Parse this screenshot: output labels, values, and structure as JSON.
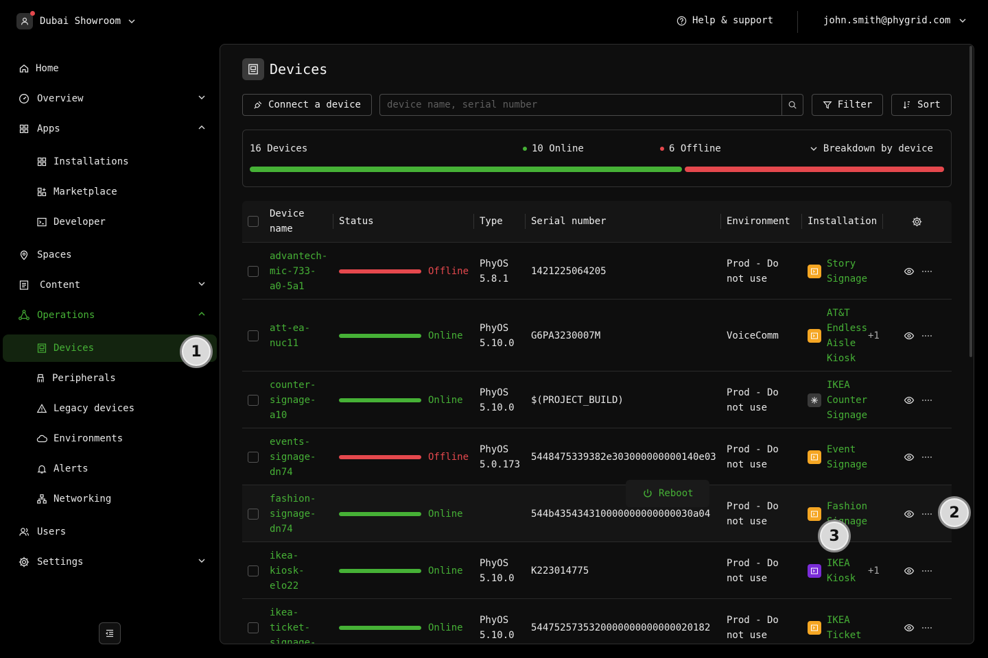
{
  "topbar": {
    "org_name": "Dubai Showroom",
    "help_label": "Help & support",
    "user_email": "john.smith@phygrid.com"
  },
  "sidebar": {
    "home": "Home",
    "overview": "Overview",
    "apps": "Apps",
    "installations": "Installations",
    "marketplace": "Marketplace",
    "developer": "Developer",
    "spaces": "Spaces",
    "content": "Content",
    "operations": "Operations",
    "devices": "Devices",
    "peripherals": "Peripherals",
    "legacy_devices": "Legacy devices",
    "environments": "Environments",
    "alerts": "Alerts",
    "networking": "Networking",
    "users": "Users",
    "settings": "Settings"
  },
  "callouts": [
    "1",
    "2",
    "3"
  ],
  "page": {
    "title": "Devices",
    "connect_label": "Connect a device",
    "search_placeholder": "device name, serial number",
    "filter_label": "Filter",
    "sort_label": "Sort"
  },
  "summary": {
    "total": "16 Devices",
    "online": "10 Online",
    "offline": "6 Offline",
    "breakdown": "Breakdown by device",
    "online_count": 10,
    "offline_count": 6
  },
  "colors": {
    "online": "#46b136",
    "offline": "#e5484d",
    "accent": "#46b136"
  },
  "table": {
    "headers": {
      "device_name": "Device\nname",
      "status": "Status",
      "type": "Type",
      "serial": "Serial number",
      "environment": "Environment",
      "installation": "Installation"
    },
    "rows": [
      {
        "name": "advantech-\nmic-733-\na0-5a1",
        "status": "Offline",
        "type": "PhyOS\n5.8.1",
        "serial": "1421225064205",
        "env": "Prod - Do\nnot use",
        "inst": "Story\nSignage",
        "inst_icon": "orange",
        "extra": ""
      },
      {
        "name": "att-ea-\nnuc11",
        "status": "Online",
        "type": "PhyOS\n5.10.0",
        "serial": "G6PA3230007M",
        "env": "VoiceComm",
        "inst": "AT&T\nEndless\nAisle\nKiosk",
        "inst_icon": "orange",
        "extra": "+1"
      },
      {
        "name": "counter-\nsignage-\na10",
        "status": "Online",
        "type": "PhyOS\n5.10.0",
        "serial": "$(PROJECT_BUILD)",
        "env": "Prod - Do\nnot use",
        "inst": "IKEA\nCounter\nSignage",
        "inst_icon": "gray",
        "extra": ""
      },
      {
        "name": "events-\nsignage-\ndn74",
        "status": "Offline",
        "type": "PhyOS\n5.0.173",
        "serial": "5448475339382e303000000000140e03",
        "env": "Prod - Do\nnot use",
        "inst": "Event\nSignage",
        "inst_icon": "orange",
        "extra": ""
      },
      {
        "name": "fashion-\nsignage-\ndn74",
        "status": "Online",
        "type": "",
        "serial": "544b435434310000000000000030a04",
        "env": "Prod - Do\nnot use",
        "inst": "Fashion\nSignage",
        "inst_icon": "orange",
        "extra": ""
      },
      {
        "name": "ikea-\nkiosk-\nelo22",
        "status": "Online",
        "type": "PhyOS\n5.10.0",
        "serial": "K223014775",
        "env": "Prod - Do\nnot use",
        "inst": "IKEA\nKiosk",
        "inst_icon": "purple",
        "extra": "+1"
      },
      {
        "name": "ikea-\nticket-\nsignage-",
        "status": "Online",
        "type": "PhyOS\n5.10.0",
        "serial": "5447525735320000000000000020182",
        "env": "Prod - Do\nnot use",
        "inst": "IKEA\nTicket",
        "inst_icon": "orange",
        "extra": ""
      }
    ]
  },
  "row_menu": {
    "reboot_label": "Reboot"
  }
}
